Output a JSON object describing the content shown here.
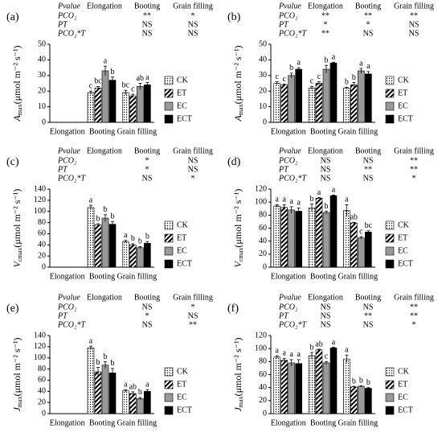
{
  "chart_data": [
    {
      "type": "bar",
      "label": "(a)",
      "ylabel": {
        "symbol": "A",
        "subscript": "max",
        "unit": "(μmol m⁻² s⁻¹)"
      },
      "categories": [
        "Elongation",
        "Booting",
        "Grain filling"
      ],
      "ylim": [
        0,
        50
      ],
      "yticks": [
        0,
        10,
        20,
        30,
        40,
        50
      ],
      "pvalue_table": {
        "header": [
          "Pvalue",
          "Elongation",
          "Booting",
          "Grain filling"
        ],
        "rows": [
          [
            "PCO₂",
            null,
            "**",
            "*"
          ],
          [
            "PT",
            null,
            "NS",
            "NS"
          ],
          [
            "PCO₂*T",
            null,
            "NS",
            "NS"
          ]
        ]
      },
      "series": [
        {
          "name": "CK",
          "color": "#ffffff",
          "pattern": "dots",
          "values": [
            null,
            19,
            19
          ],
          "errors": [
            null,
            1,
            1.5
          ],
          "letters": [
            null,
            "c",
            "bc"
          ]
        },
        {
          "name": "ET",
          "color": "#ffffff",
          "pattern": "stripes",
          "values": [
            null,
            22,
            17
          ],
          "errors": [
            null,
            1,
            1
          ],
          "letters": [
            null,
            "bc",
            "c"
          ]
        },
        {
          "name": "EC",
          "color": "#999999",
          "pattern": "solid",
          "values": [
            null,
            33,
            23
          ],
          "errors": [
            null,
            3,
            2
          ],
          "letters": [
            null,
            "a",
            "ab"
          ]
        },
        {
          "name": "ECT",
          "color": "#000000",
          "pattern": "solid",
          "values": [
            null,
            27,
            24
          ],
          "errors": [
            null,
            2,
            1.5
          ],
          "letters": [
            null,
            "b",
            "a"
          ]
        }
      ]
    },
    {
      "type": "bar",
      "label": "(b)",
      "ylabel": {
        "symbol": "A",
        "subscript": "max",
        "unit": "(μmol m⁻² s⁻¹)"
      },
      "categories": [
        "Elongation",
        "Booting",
        "Grain filling"
      ],
      "ylim": [
        0,
        50
      ],
      "yticks": [
        0,
        10,
        20,
        30,
        40,
        50
      ],
      "pvalue_table": {
        "header": [
          "Pvalue",
          "Elongation",
          "Booting",
          "Grain filling"
        ],
        "rows": [
          [
            "PCO₂",
            "**",
            "**",
            "**"
          ],
          [
            "PT",
            "*",
            "*",
            "NS"
          ],
          [
            "PCO₂*T",
            "**",
            "NS",
            "NS"
          ]
        ]
      },
      "series": [
        {
          "name": "CK",
          "color": "#ffffff",
          "pattern": "dots",
          "values": [
            25,
            22,
            22
          ],
          "errors": [
            1,
            1,
            0.5
          ],
          "letters": [
            "c",
            "c",
            "b"
          ]
        },
        {
          "name": "ET",
          "color": "#ffffff",
          "pattern": "stripes",
          "values": [
            24,
            25,
            24
          ],
          "errors": [
            0.5,
            1,
            1.5
          ],
          "letters": [
            "c",
            "c",
            "b"
          ]
        },
        {
          "name": "EC",
          "color": "#999999",
          "pattern": "solid",
          "values": [
            30,
            34,
            33
          ],
          "errors": [
            1.5,
            2.5,
            1.5
          ],
          "letters": [
            "b",
            "b",
            "a"
          ]
        },
        {
          "name": "ECT",
          "color": "#000000",
          "pattern": "solid",
          "values": [
            34,
            38,
            31
          ],
          "errors": [
            1,
            0.5,
            1.5
          ],
          "letters": [
            "a",
            "a",
            "a"
          ]
        }
      ]
    },
    {
      "type": "bar",
      "label": "(c)",
      "ylabel": {
        "symbol": "V",
        "subscript": "cmax",
        "unit": "(μmol m⁻² s⁻¹)"
      },
      "categories": [
        "Elongation",
        "Booting",
        "Grain filling"
      ],
      "ylim": [
        0,
        140
      ],
      "yticks": [
        0,
        20,
        40,
        60,
        80,
        100,
        120,
        140
      ],
      "pvalue_table": {
        "header": [
          "Pvalue",
          "Elongation",
          "Booting",
          "Grain filling"
        ],
        "rows": [
          [
            "PCO₂",
            null,
            "*",
            "NS"
          ],
          [
            "PT",
            null,
            "*",
            "NS"
          ],
          [
            "PCO₂*T",
            null,
            "NS",
            "*"
          ]
        ]
      },
      "series": [
        {
          "name": "CK",
          "color": "#ffffff",
          "pattern": "dots",
          "values": [
            null,
            107,
            46
          ],
          "errors": [
            null,
            4,
            2
          ],
          "letters": [
            null,
            "a",
            "a"
          ]
        },
        {
          "name": "ET",
          "color": "#ffffff",
          "pattern": "stripes",
          "values": [
            null,
            76,
            40
          ],
          "errors": [
            null,
            2,
            2
          ],
          "letters": [
            null,
            "b",
            "b"
          ]
        },
        {
          "name": "EC",
          "color": "#999999",
          "pattern": "solid",
          "values": [
            null,
            88,
            35
          ],
          "errors": [
            null,
            6,
            2
          ],
          "letters": [
            null,
            "b",
            "b"
          ]
        },
        {
          "name": "ECT",
          "color": "#000000",
          "pattern": "solid",
          "values": [
            null,
            77,
            43
          ],
          "errors": [
            null,
            5,
            3
          ],
          "letters": [
            null,
            "b",
            "b"
          ]
        }
      ]
    },
    {
      "type": "bar",
      "label": "(d)",
      "ylabel": {
        "symbol": "V",
        "subscript": "cmax",
        "unit": "(μmol m⁻² s⁻¹)"
      },
      "categories": [
        "Elongation",
        "Booting",
        "Grain filling"
      ],
      "ylim": [
        0,
        120
      ],
      "yticks": [
        0,
        20,
        40,
        60,
        80,
        100,
        120
      ],
      "pvalue_table": {
        "header": [
          "Pvalue",
          "Elongation",
          "Booting",
          "Grain filling"
        ],
        "rows": [
          [
            "PCO₂",
            "NS",
            "NS",
            "**"
          ],
          [
            "PT",
            "NS",
            "**",
            "**"
          ],
          [
            "PCO₂*T",
            "NS",
            "NS",
            "*"
          ]
        ]
      },
      "series": [
        {
          "name": "CK",
          "color": "#ffffff",
          "pattern": "dots",
          "values": [
            94,
            91,
            87
          ],
          "errors": [
            2,
            6,
            9
          ],
          "letters": [
            "a",
            "b",
            "a"
          ]
        },
        {
          "name": "ET",
          "color": "#ffffff",
          "pattern": "stripes",
          "values": [
            92,
            106,
            68
          ],
          "errors": [
            4,
            1,
            1
          ],
          "letters": [
            "a",
            "a",
            "ab"
          ]
        },
        {
          "name": "EC",
          "color": "#999999",
          "pattern": "solid",
          "values": [
            88,
            84,
            45
          ],
          "errors": [
            5,
            2,
            2
          ],
          "letters": [
            "a",
            "b",
            "c"
          ]
        },
        {
          "name": "ECT",
          "color": "#000000",
          "pattern": "solid",
          "values": [
            86,
            110,
            54
          ],
          "errors": [
            5,
            1,
            2
          ],
          "letters": [
            "a",
            "a",
            "bc"
          ]
        }
      ]
    },
    {
      "type": "bar",
      "label": "(e)",
      "ylabel": {
        "symbol": "J",
        "subscript": "max",
        "unit": "(μmol m⁻² s⁻¹)"
      },
      "categories": [
        "Elongation",
        "Booting",
        "Grain filling"
      ],
      "ylim": [
        0,
        140
      ],
      "yticks": [
        0,
        20,
        40,
        60,
        80,
        100,
        120,
        140
      ],
      "pvalue_table": {
        "header": [
          "Pvalue",
          "Elongation",
          "Booting",
          "Grain filling"
        ],
        "rows": [
          [
            "PCO₂",
            null,
            "NS",
            "*"
          ],
          [
            "PT",
            null,
            "*",
            "NS"
          ],
          [
            "PCO₂*T",
            null,
            "NS",
            "**"
          ]
        ]
      },
      "series": [
        {
          "name": "CK",
          "color": "#ffffff",
          "pattern": "dots",
          "values": [
            null,
            118,
            41
          ],
          "errors": [
            null,
            3,
            2
          ],
          "letters": [
            null,
            "a",
            "a"
          ]
        },
        {
          "name": "ET",
          "color": "#ffffff",
          "pattern": "stripes",
          "values": [
            null,
            75,
            36
          ],
          "errors": [
            null,
            8,
            3
          ],
          "letters": [
            null,
            "b",
            "ab"
          ]
        },
        {
          "name": "EC",
          "color": "#999999",
          "pattern": "solid",
          "values": [
            null,
            87,
            27
          ],
          "errors": [
            null,
            6,
            2
          ],
          "letters": [
            null,
            "b",
            "b"
          ]
        },
        {
          "name": "ECT",
          "color": "#000000",
          "pattern": "solid",
          "values": [
            null,
            73,
            40
          ],
          "errors": [
            null,
            8,
            3
          ],
          "letters": [
            null,
            "b",
            "a"
          ]
        }
      ]
    },
    {
      "type": "bar",
      "label": "(f)",
      "ylabel": {
        "symbol": "J",
        "subscript": "max",
        "unit": "(μmol m⁻² s⁻¹)"
      },
      "categories": [
        "Elongation",
        "Booting",
        "Grain filling"
      ],
      "ylim": [
        0,
        120
      ],
      "yticks": [
        0,
        20,
        40,
        60,
        80,
        100,
        120
      ],
      "pvalue_table": {
        "header": [
          "Pvalue",
          "Elongation",
          "Booting",
          "Grain filling"
        ],
        "rows": [
          [
            "PCO₂",
            "NS",
            "NS",
            "**"
          ],
          [
            "PT",
            "NS",
            "**",
            "**"
          ],
          [
            "PCO₂*T",
            "NS",
            "NS",
            "*"
          ]
        ]
      },
      "series": [
        {
          "name": "CK",
          "color": "#ffffff",
          "pattern": "dots",
          "values": [
            87,
            89,
            84
          ],
          "errors": [
            2,
            5,
            6
          ],
          "letters": [
            "a",
            "b",
            "a"
          ]
        },
        {
          "name": "ET",
          "color": "#ffffff",
          "pattern": "stripes",
          "values": [
            82,
            98,
            41
          ],
          "errors": [
            3,
            1,
            1
          ],
          "letters": [
            "a",
            "ab",
            "b"
          ]
        },
        {
          "name": "EC",
          "color": "#999999",
          "pattern": "solid",
          "values": [
            78,
            78,
            42
          ],
          "errors": [
            5,
            2,
            1
          ],
          "letters": [
            "a",
            "c",
            "b"
          ]
        },
        {
          "name": "ECT",
          "color": "#000000",
          "pattern": "solid",
          "values": [
            77,
            101,
            39
          ],
          "errors": [
            6,
            1,
            1
          ],
          "letters": [
            "a",
            "a",
            "b"
          ]
        }
      ]
    }
  ]
}
